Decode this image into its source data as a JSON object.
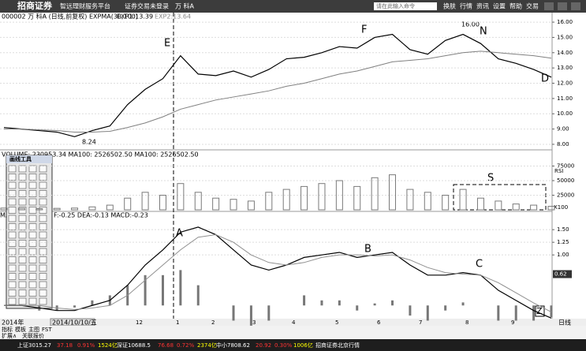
{
  "toolbar": {
    "logo": "招商证券",
    "platform": "智远理财服务平台",
    "trade_status": "证券交易未登录",
    "stock": "万 科A",
    "search": "请在此输入命令",
    "menus": [
      "换肤",
      "行情",
      "资讯",
      "设置",
      "帮助",
      "交易"
    ]
  },
  "price_panel": {
    "header": "000002 万 科A (日线,前复权) EXPMA(30,100)",
    "exp1": "EXP1:13.39",
    "exp2": "EXP2:13.64",
    "ylim": [
      7.74,
      16.52
    ],
    "yticks": [
      {
        "value": 8,
        "label": "8.00"
      },
      {
        "value": 9,
        "label": "9.00"
      },
      {
        "value": 10,
        "label": "10.00"
      },
      {
        "value": 11,
        "label": "11.00"
      },
      {
        "value": 12,
        "label": "12.00"
      },
      {
        "value": 13,
        "label": "13.00"
      },
      {
        "value": 14,
        "label": "14.00"
      },
      {
        "value": 15,
        "label": "15.00"
      },
      {
        "value": 16,
        "label": "16.00"
      }
    ],
    "series": [
      {
        "name": "收盘",
        "color": "#000000",
        "values": [
          9.1,
          9.0,
          8.9,
          8.8,
          8.5,
          8.9,
          9.2,
          10.6,
          11.6,
          12.3,
          13.8,
          12.6,
          12.5,
          12.8,
          12.4,
          12.9,
          13.6,
          13.7,
          14.0,
          14.4,
          14.3,
          15.0,
          15.2,
          14.2,
          13.9,
          14.8,
          15.2,
          14.6,
          13.6,
          13.3,
          12.9,
          12.4
        ]
      },
      {
        "name": "EXP2",
        "color": "#808080",
        "values": [
          9.0,
          9.0,
          8.95,
          8.9,
          8.8,
          8.8,
          8.85,
          9.1,
          9.4,
          9.8,
          10.3,
          10.6,
          10.9,
          11.1,
          11.3,
          11.5,
          11.8,
          12.0,
          12.3,
          12.6,
          12.8,
          13.1,
          13.4,
          13.5,
          13.6,
          13.8,
          14.0,
          14.1,
          14.0,
          13.9,
          13.8,
          13.64
        ]
      }
    ],
    "annotations": [
      "E",
      "F",
      "N",
      "D",
      "8.24",
      "16.00"
    ]
  },
  "volume_panel": {
    "header": "VOLUME: 230953.34 MA100: 2526502.50 MA100: 2526502.50",
    "ylim": [
      0,
      100000
    ],
    "yticks": [
      25000,
      50000,
      75000
    ],
    "unit": "X100",
    "side_label": "RSI",
    "color": "#7a7a7a",
    "values": [
      3000,
      2500,
      2000,
      2500,
      3000,
      5000,
      8000,
      20000,
      30000,
      25000,
      45000,
      30000,
      20000,
      18000,
      15000,
      30000,
      35000,
      40000,
      45000,
      50000,
      40000,
      55000,
      60000,
      35000,
      30000,
      25000,
      35000,
      20000,
      15000,
      10000,
      8000,
      6000
    ],
    "annotations": [
      "S"
    ]
  },
  "macd_panel": {
    "header": "F:-0.25 DEA:-0.13 MACD:-0.23",
    "prefix": "MA",
    "ylim": [
      -0.23,
      1.83
    ],
    "yticks": [
      {
        "value": 1,
        "label": "1.00"
      },
      {
        "value": 1.25,
        "label": "1.25"
      },
      {
        "value": 1.5,
        "label": "1.50"
      }
    ],
    "current": 0.62,
    "series": [
      {
        "name": "DIF",
        "color": "#000000",
        "values": [
          0,
          0,
          -0.05,
          -0.1,
          -0.1,
          0,
          0.1,
          0.4,
          0.8,
          1.1,
          1.45,
          1.55,
          1.4,
          1.1,
          0.8,
          0.7,
          0.8,
          0.95,
          1.0,
          1.05,
          0.95,
          1.0,
          1.05,
          0.8,
          0.6,
          0.6,
          0.65,
          0.6,
          0.3,
          0.1,
          -0.1,
          -0.25
        ]
      },
      {
        "name": "DEA",
        "color": "#909090",
        "values": [
          0,
          0,
          0,
          -0.05,
          -0.08,
          -0.05,
          0,
          0.2,
          0.5,
          0.8,
          1.1,
          1.35,
          1.4,
          1.25,
          1.0,
          0.85,
          0.8,
          0.85,
          0.95,
          1.0,
          1.0,
          0.98,
          1.0,
          0.9,
          0.75,
          0.65,
          0.62,
          0.6,
          0.45,
          0.25,
          0.05,
          -0.13
        ]
      }
    ],
    "macd": [
      0,
      0,
      -0.1,
      -0.1,
      -0.04,
      0.1,
      0.2,
      0.4,
      0.6,
      0.6,
      0.7,
      0.4,
      0,
      -0.3,
      -0.4,
      -0.3,
      0,
      0.2,
      0.1,
      0.1,
      -0.1,
      0.04,
      0.1,
      -0.2,
      -0.3,
      -0.1,
      0.06,
      0,
      -0.3,
      -0.3,
      -0.3,
      -0.23
    ],
    "annotations": [
      "A",
      "B",
      "C",
      "Z"
    ]
  },
  "tool_palette": {
    "title": "画线工具"
  },
  "date_axis": {
    "year": "2014年",
    "cursor": "2014/10/10/五",
    "months": [
      "12",
      "1",
      "2",
      "3",
      "4",
      "5",
      "6",
      "7",
      "8",
      "9"
    ],
    "period": "日线"
  },
  "tabs": {
    "row1": [
      "指标",
      "模板",
      "主图",
      "FST"
    ],
    "row2": [
      "扩展∧",
      "关联报价"
    ]
  },
  "status_bar": [
    "上证3015.27",
    "37.18",
    "0.91%",
    "1524亿",
    "深证10688.5",
    "76.68",
    "0.72%",
    "2374亿",
    "中小7808.62",
    "20.92",
    "0.30%",
    "1006亿",
    "招商证券北京行情"
  ]
}
